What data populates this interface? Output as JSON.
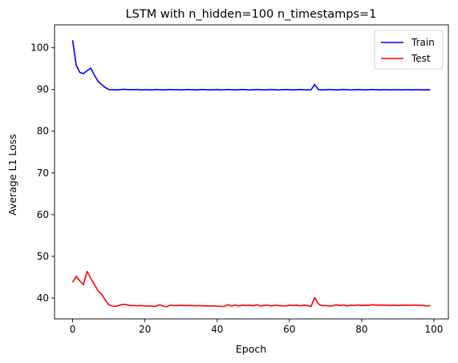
{
  "chart_data": {
    "type": "line",
    "title": "LSTM with n_hidden=100 n_timestamps=1",
    "xlabel": "Epoch",
    "ylabel": "Average L1 Loss",
    "xlim": [
      -5,
      104
    ],
    "ylim": [
      35,
      105.5
    ],
    "xticks": [
      0,
      20,
      40,
      60,
      80,
      100
    ],
    "yticks": [
      40,
      50,
      60,
      70,
      80,
      90,
      100
    ],
    "grid": false,
    "legend_position": "top-right",
    "series": [
      {
        "name": "Train",
        "color": "#0000ff",
        "values": [
          101.8,
          95.8,
          94.1,
          93.8,
          94.5,
          95.1,
          93.5,
          92.0,
          91.2,
          90.5,
          90.0,
          89.95,
          89.9,
          89.95,
          90.05,
          90.0,
          89.95,
          89.95,
          90.0,
          89.9,
          89.95,
          89.95,
          89.9,
          90.0,
          89.95,
          89.9,
          89.95,
          90.0,
          89.95,
          89.95,
          89.9,
          89.95,
          90.0,
          89.95,
          89.9,
          89.95,
          90.0,
          89.95,
          89.9,
          89.95,
          90.0,
          89.9,
          89.95,
          90.0,
          89.95,
          89.9,
          89.95,
          90.0,
          89.95,
          89.9,
          89.95,
          90.0,
          89.95,
          89.9,
          89.95,
          90.0,
          89.95,
          89.9,
          89.95,
          90.0,
          89.95,
          89.9,
          89.95,
          90.0,
          89.95,
          89.9,
          89.95,
          91.2,
          90.0,
          89.9,
          89.95,
          90.0,
          89.95,
          89.9,
          89.95,
          90.0,
          89.95,
          89.9,
          89.95,
          90.0,
          89.95,
          89.9,
          89.95,
          90.0,
          89.95,
          89.9,
          89.95,
          89.95,
          89.9,
          89.95,
          89.95,
          89.9,
          89.95,
          89.95,
          89.9,
          89.95,
          89.95,
          89.9,
          89.95,
          89.9
        ]
      },
      {
        "name": "Test",
        "color": "#ff0000",
        "values": [
          43.8,
          45.2,
          44.1,
          43.2,
          46.4,
          44.8,
          43.3,
          41.8,
          41.0,
          39.6,
          38.4,
          38.1,
          38.0,
          38.3,
          38.5,
          38.4,
          38.2,
          38.2,
          38.15,
          38.2,
          38.1,
          38.1,
          38.05,
          38.0,
          38.4,
          38.1,
          37.9,
          38.3,
          38.2,
          38.2,
          38.25,
          38.2,
          38.2,
          38.2,
          38.15,
          38.2,
          38.15,
          38.1,
          38.1,
          38.1,
          38.05,
          38.0,
          38.0,
          38.4,
          38.1,
          38.35,
          38.1,
          38.3,
          38.2,
          38.3,
          38.15,
          38.4,
          38.1,
          38.25,
          38.3,
          38.1,
          38.3,
          38.2,
          38.15,
          38.1,
          38.3,
          38.2,
          38.3,
          38.1,
          38.3,
          38.2,
          38.0,
          40.1,
          38.6,
          38.2,
          38.2,
          38.1,
          38.15,
          38.4,
          38.2,
          38.35,
          38.1,
          38.3,
          38.2,
          38.35,
          38.2,
          38.3,
          38.25,
          38.4,
          38.3,
          38.3,
          38.3,
          38.3,
          38.25,
          38.3,
          38.2,
          38.3,
          38.3,
          38.25,
          38.3,
          38.3,
          38.3,
          38.25,
          38.1,
          38.2
        ]
      }
    ]
  }
}
